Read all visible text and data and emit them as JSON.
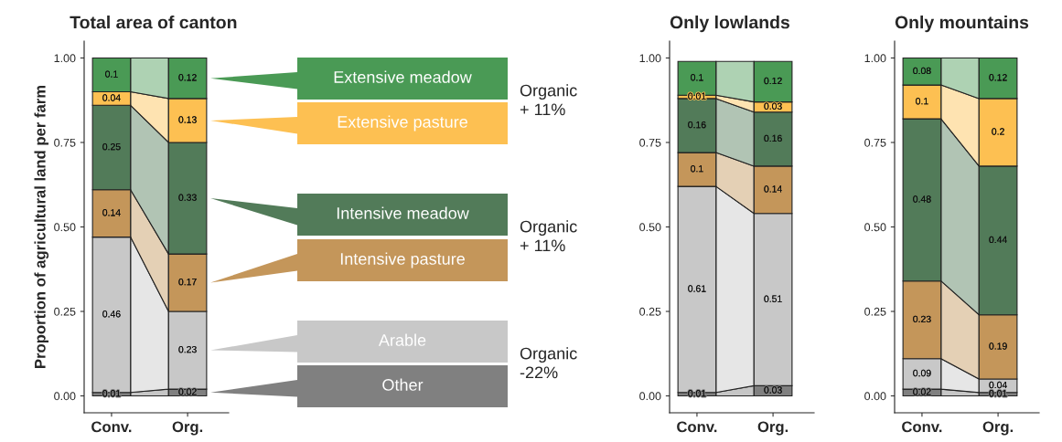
{
  "chart_data": [
    {
      "type": "bar",
      "title": "Total area of canton",
      "ylabel": "Proportion of agricultural land per farm",
      "categories": [
        "Conv.",
        "Org."
      ],
      "stacked": true,
      "data_labels": true,
      "legend": "right",
      "ylim": [
        -0.05,
        1.05
      ],
      "yticks": [
        {
          "value": 0,
          "label": "0.00"
        },
        {
          "value": 0.25,
          "label": "0.25"
        },
        {
          "value": 0.5,
          "label": "0.50"
        },
        {
          "value": 0.75,
          "label": "0.75"
        },
        {
          "value": 1,
          "label": "1.00"
        }
      ],
      "annotations": [
        "Organic\n+ 11%",
        "Organic\n+ 11%",
        "Organic\n-22%"
      ],
      "series": [
        {
          "name": "Other",
          "color": "#808080",
          "values": [
            0.01,
            0.02
          ]
        },
        {
          "name": "Arable",
          "color": "#c8c8c8",
          "values": [
            0.46,
            0.23
          ]
        },
        {
          "name": "Intensive pasture",
          "color": "#c4965a",
          "values": [
            0.14,
            0.17
          ]
        },
        {
          "name": "Intensive meadow",
          "color": "#527b59",
          "values": [
            0.25,
            0.33
          ]
        },
        {
          "name": "Extensive pasture",
          "color": "#fdc052",
          "values": [
            0.04,
            0.13
          ]
        },
        {
          "name": "Extensive meadow",
          "color": "#4a9a55",
          "values": [
            0.1,
            0.12
          ]
        }
      ]
    },
    {
      "type": "bar",
      "title": "Only lowlands",
      "categories": [
        "Conv.",
        "Org."
      ],
      "stacked": true,
      "data_labels": true,
      "ylim": [
        -0.05,
        1.05
      ],
      "yticks": [
        {
          "value": 0,
          "label": "0.00"
        },
        {
          "value": 0.25,
          "label": "0.25"
        },
        {
          "value": 0.5,
          "label": "0.50"
        },
        {
          "value": 0.75,
          "label": "0.75"
        },
        {
          "value": 1,
          "label": "1.00"
        }
      ],
      "series": [
        {
          "color": "#808080",
          "values": [
            0.01,
            0.03
          ]
        },
        {
          "color": "#c8c8c8",
          "values": [
            0.61,
            0.51
          ]
        },
        {
          "color": "#c4965a",
          "values": [
            0.1,
            0.14
          ]
        },
        {
          "color": "#527b59",
          "values": [
            0.16,
            0.16
          ]
        },
        {
          "color": "#fdc052",
          "values": [
            0.01,
            0.03
          ]
        },
        {
          "color": "#4a9a55",
          "values": [
            0.1,
            0.12
          ]
        }
      ]
    },
    {
      "type": "bar",
      "title": "Only mountains",
      "categories": [
        "Conv.",
        "Org."
      ],
      "stacked": true,
      "data_labels": true,
      "ylim": [
        -0.05,
        1.05
      ],
      "yticks": [
        {
          "value": 0,
          "label": "0.00"
        },
        {
          "value": 0.25,
          "label": "0.25"
        },
        {
          "value": 0.5,
          "label": "0.50"
        },
        {
          "value": 0.75,
          "label": "0.75"
        },
        {
          "value": 1,
          "label": "1.00"
        }
      ],
      "series": [
        {
          "color": "#808080",
          "values": [
            0.02,
            0.01
          ]
        },
        {
          "color": "#c8c8c8",
          "values": [
            0.09,
            0.04
          ]
        },
        {
          "color": "#c4965a",
          "values": [
            0.23,
            0.19
          ]
        },
        {
          "color": "#527b59",
          "values": [
            0.48,
            0.44
          ]
        },
        {
          "color": "#fdc052",
          "values": [
            0.1,
            0.2
          ]
        },
        {
          "color": "#4a9a55",
          "values": [
            0.08,
            0.12
          ]
        }
      ]
    }
  ]
}
